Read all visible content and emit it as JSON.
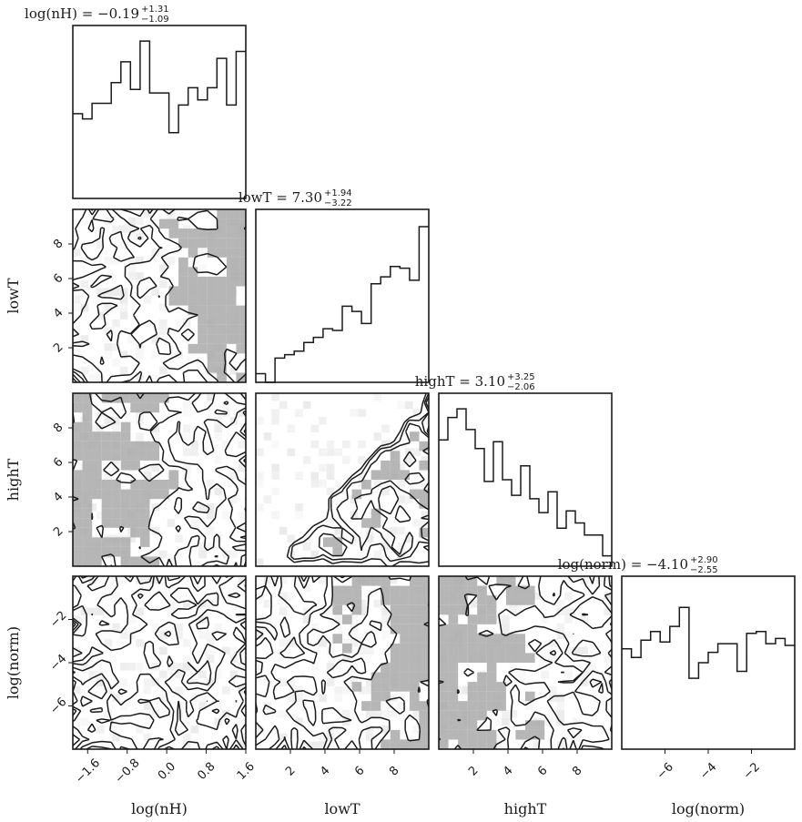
{
  "chart_data": {
    "type": "corner",
    "parameters": [
      {
        "key": "lognH",
        "label": "log(nH)",
        "title_name": "log(nH)",
        "median": "−0.19",
        "plus": "+1.31",
        "minus": "−1.09",
        "range": [
          -1.9,
          1.6
        ],
        "ticks": [
          -1.6,
          -0.8,
          0.0,
          0.8,
          1.6
        ],
        "tick_labels": [
          "−1.6",
          "−0.8",
          "0.0",
          "0.8",
          "1.6"
        ]
      },
      {
        "key": "lowT",
        "label": "lowT",
        "title_name": "lowT",
        "median": "7.30",
        "plus": "+1.94",
        "minus": "−3.22",
        "range": [
          0.0,
          10.0
        ],
        "ticks": [
          2,
          4,
          6,
          8
        ],
        "tick_labels": [
          "2",
          "4",
          "6",
          "8"
        ]
      },
      {
        "key": "highT",
        "label": "highT",
        "title_name": "highT",
        "median": "3.10",
        "plus": "+3.25",
        "minus": "−2.06",
        "range": [
          0.0,
          10.0
        ],
        "ticks": [
          2,
          4,
          6,
          8
        ],
        "tick_labels": [
          "2",
          "4",
          "6",
          "8"
        ]
      },
      {
        "key": "lognorm",
        "label": "log(norm)",
        "title_name": "log(norm)",
        "median": "−4.10",
        "plus": "+2.90",
        "minus": "−2.55",
        "range": [
          -8.0,
          0.0
        ],
        "ticks": [
          -6,
          -4,
          -2
        ],
        "tick_labels": [
          "−6",
          "−4",
          "−2"
        ]
      }
    ],
    "histograms": {
      "lognH": [
        0.49,
        0.46,
        0.55,
        0.55,
        0.67,
        0.79,
        0.63,
        0.91,
        0.61,
        0.61,
        0.38,
        0.54,
        0.64,
        0.57,
        0.64,
        0.81,
        0.54,
        0.85
      ],
      "lowT": [
        0.05,
        0.0,
        0.14,
        0.16,
        0.18,
        0.23,
        0.26,
        0.31,
        0.3,
        0.44,
        0.41,
        0.34,
        0.57,
        0.61,
        0.67,
        0.66,
        0.59,
        0.9
      ],
      "highT": [
        0.73,
        0.86,
        0.91,
        0.79,
        0.68,
        0.49,
        0.72,
        0.5,
        0.41,
        0.58,
        0.39,
        0.31,
        0.43,
        0.22,
        0.32,
        0.25,
        0.18,
        0.18,
        0.06
      ],
      "lognorm": [
        0.58,
        0.53,
        0.63,
        0.68,
        0.62,
        0.71,
        0.82,
        0.41,
        0.5,
        0.56,
        0.61,
        0.61,
        0.45,
        0.67,
        0.68,
        0.61,
        0.64,
        0.6
      ]
    },
    "contour_levels": [
      0.12,
      0.34,
      0.6,
      0.85
    ],
    "level_fills": [
      "#d3d3d3",
      "#a9a9a9",
      "#6e6e6e",
      "#2b2b2b"
    ],
    "grid": false,
    "style": {
      "line_color": "#1a1a1a",
      "frame_color": "#1a1a1a"
    }
  }
}
